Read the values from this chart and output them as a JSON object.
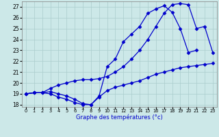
{
  "xlabel": "Graphe des températures (°c)",
  "bg_color": "#cce8e8",
  "grid_color": "#aacccc",
  "line_color": "#0000cc",
  "hours": [
    0,
    1,
    2,
    3,
    4,
    5,
    6,
    7,
    8,
    9,
    10,
    11,
    12,
    13,
    14,
    15,
    16,
    17,
    18,
    19,
    20,
    21,
    22,
    23
  ],
  "line1": [
    19.0,
    19.1,
    19.1,
    19.0,
    18.7,
    18.5,
    18.2,
    18.0,
    18.0,
    18.7,
    19.3,
    19.6,
    19.8,
    20.0,
    20.2,
    20.5,
    20.8,
    21.0,
    21.2,
    21.4,
    21.5,
    21.6,
    21.7,
    21.8
  ],
  "line2_x": [
    0,
    1,
    2,
    3,
    4,
    5,
    6,
    7,
    8,
    9,
    10,
    11,
    12,
    13,
    14,
    15,
    16,
    17,
    18,
    19,
    20,
    21
  ],
  "line2_y": [
    19.0,
    19.1,
    19.1,
    19.2,
    19.0,
    18.8,
    18.5,
    18.1,
    18.0,
    18.8,
    21.5,
    22.2,
    23.8,
    24.5,
    25.2,
    26.4,
    26.8,
    27.1,
    26.5,
    25.0,
    22.8,
    23.0
  ],
  "line3": [
    19.0,
    19.1,
    19.1,
    19.5,
    19.8,
    20.0,
    20.2,
    20.3,
    20.3,
    20.4,
    20.6,
    21.0,
    21.5,
    22.2,
    23.0,
    24.0,
    25.2,
    26.4,
    27.2,
    27.3,
    27.2,
    25.0,
    25.2,
    22.8
  ],
  "ylim": [
    17.8,
    27.5
  ],
  "yticks": [
    18,
    19,
    20,
    21,
    22,
    23,
    24,
    25,
    26,
    27
  ],
  "xlim": [
    -0.5,
    23.5
  ]
}
